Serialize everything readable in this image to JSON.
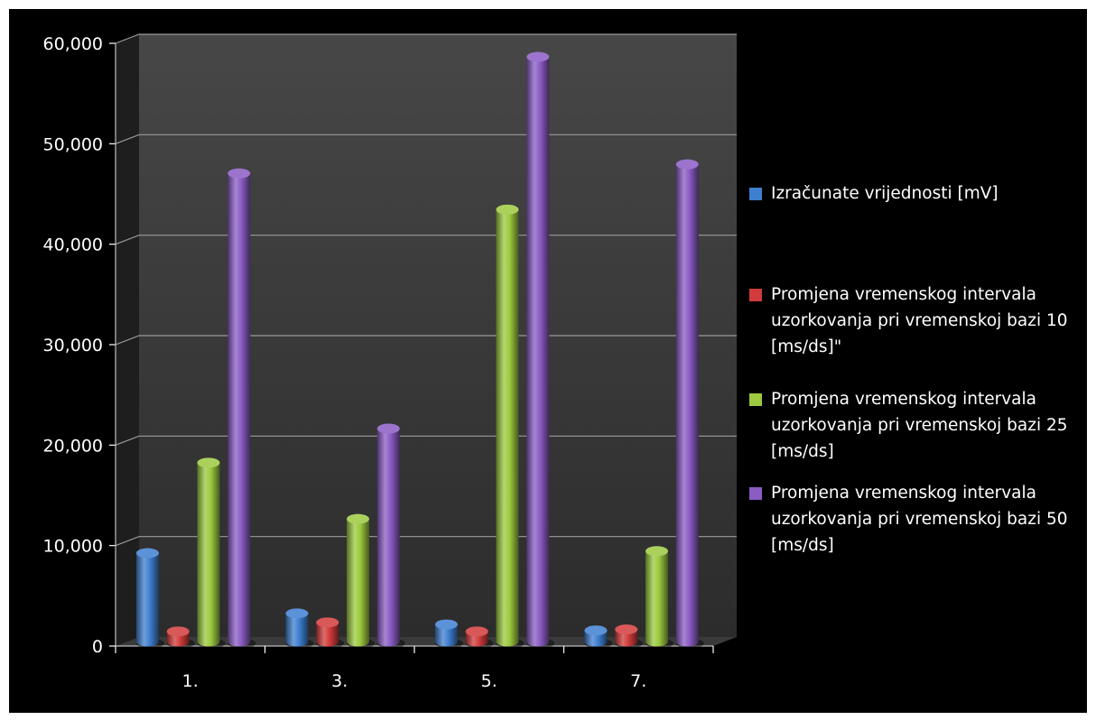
{
  "chart_data": {
    "type": "bar",
    "categories": [
      "1.",
      "3.",
      "5.",
      "7."
    ],
    "series": [
      {
        "name": "Izračunate vrijednosti [mV]",
        "color": "#3f7fd0",
        "values": [
          8800,
          2800,
          1700,
          1100
        ]
      },
      {
        "name": "Promjena vremenskog intervala uzorkovanja pri vremenskoj bazi 10 [ms/ds]\"",
        "color": "#d23b3b",
        "values": [
          1000,
          1900,
          1000,
          1200
        ]
      },
      {
        "name": "Promjena vremenskog intervala uzorkovanja pri vremenskoj bazi 25 [ms/ds]",
        "color": "#9cc93f",
        "values": [
          17800,
          12200,
          43000,
          9000
        ]
      },
      {
        "name": "Promjena vremenskog intervala uzorkovanja pri vremenskoj bazi 50 [ms/ds]",
        "color": "#8a5cc4",
        "values": [
          46600,
          21200,
          58200,
          47500
        ]
      }
    ],
    "y_ticks": [
      "0",
      "10,000",
      "20,000",
      "30,000",
      "40,000",
      "50,000",
      "60,000"
    ],
    "ylim": [
      0,
      60000
    ],
    "grid": true,
    "legend_position": "right",
    "title": "",
    "xlabel": "",
    "ylabel": ""
  },
  "colors": {
    "background": "#000000",
    "grid": "#9a9a9a",
    "text": "#ffffff"
  }
}
